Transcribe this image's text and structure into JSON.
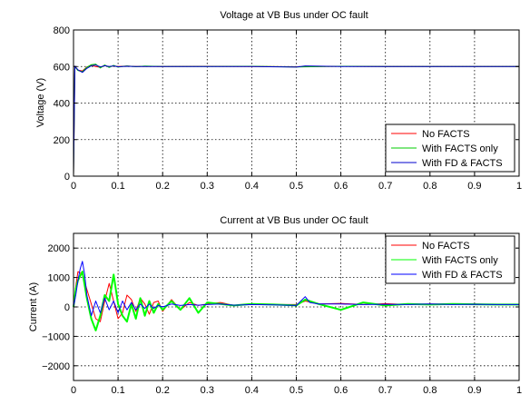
{
  "chart_data": [
    {
      "type": "line",
      "title": "Voltage at VB Bus under OC fault",
      "xlabel": "",
      "ylabel": "Voltage (V)",
      "xlim": [
        0,
        1
      ],
      "ylim": [
        0,
        800
      ],
      "xticks": [
        0,
        0.1,
        0.2,
        0.3,
        0.4,
        0.5,
        0.6,
        0.7,
        0.8,
        0.9,
        1
      ],
      "xtick_labels": [
        "0",
        "0.1",
        "0.2",
        "0.3",
        "0.4",
        "0.5",
        "0.6",
        "0.7",
        "0.8",
        "0.9",
        "1"
      ],
      "yticks": [
        0,
        200,
        400,
        600,
        800
      ],
      "ytick_labels": [
        "0",
        "200",
        "400",
        "600",
        "800"
      ],
      "grid": true,
      "legend_position": "bottom-right",
      "series": [
        {
          "name": "No FACTS",
          "color": "#ff0000",
          "x": [
            0,
            0.003,
            0.01,
            0.02,
            0.03,
            0.04,
            0.05,
            0.06,
            0.07,
            0.08,
            0.09,
            0.1,
            0.12,
            0.14,
            0.16,
            0.2,
            0.3,
            0.4,
            0.5,
            0.6,
            0.7,
            0.8,
            0.9,
            1
          ],
          "y": [
            0,
            598,
            580,
            576,
            598,
            606,
            600,
            596,
            605,
            599,
            603,
            600,
            602,
            600,
            601,
            600,
            601,
            600,
            599,
            601,
            600,
            600,
            600,
            600
          ]
        },
        {
          "name": "With FACTS only",
          "color": "#00cc00",
          "x": [
            0,
            0.003,
            0.01,
            0.02,
            0.03,
            0.04,
            0.05,
            0.06,
            0.07,
            0.08,
            0.09,
            0.1,
            0.12,
            0.14,
            0.16,
            0.2,
            0.3,
            0.4,
            0.5,
            0.6,
            0.7,
            0.8,
            0.9,
            1
          ],
          "y": [
            0,
            600,
            578,
            572,
            596,
            610,
            613,
            592,
            608,
            595,
            606,
            597,
            603,
            599,
            602,
            600,
            600,
            601,
            598,
            601,
            600,
            600,
            600,
            600
          ]
        },
        {
          "name": "With FD & FACTS",
          "color": "#0000cc",
          "x": [
            0,
            0.003,
            0.01,
            0.02,
            0.03,
            0.04,
            0.05,
            0.06,
            0.07,
            0.08,
            0.09,
            0.1,
            0.12,
            0.14,
            0.16,
            0.2,
            0.3,
            0.4,
            0.5,
            0.52,
            0.6,
            0.7,
            0.8,
            0.9,
            1
          ],
          "y": [
            0,
            602,
            582,
            568,
            590,
            604,
            608,
            598,
            604,
            600,
            603,
            599,
            601,
            600,
            600,
            600,
            600,
            600,
            597,
            603,
            600,
            600,
            600,
            600,
            600
          ]
        }
      ]
    },
    {
      "type": "line",
      "title": "Current at VB Bus under OC fault",
      "xlabel": "",
      "ylabel": "Current (A)",
      "xlim": [
        0,
        1
      ],
      "ylim": [
        -2500,
        2500
      ],
      "xticks": [
        0,
        0.1,
        0.2,
        0.3,
        0.4,
        0.5,
        0.6,
        0.7,
        0.8,
        0.9,
        1
      ],
      "xtick_labels": [
        "0",
        "0.1",
        "0.2",
        "0.3",
        "0.4",
        "0.5",
        "0.6",
        "0.7",
        "0.8",
        "0.9",
        "1"
      ],
      "yticks": [
        -2000,
        -1000,
        0,
        1000,
        2000
      ],
      "ytick_labels": [
        "−2000",
        "−1000",
        "0",
        "1000",
        "2000"
      ],
      "grid": true,
      "legend_position": "top-right",
      "series": [
        {
          "name": "No FACTS",
          "color": "#ff0000",
          "x": [
            0,
            0.005,
            0.01,
            0.02,
            0.03,
            0.04,
            0.05,
            0.06,
            0.07,
            0.08,
            0.09,
            0.1,
            0.11,
            0.12,
            0.13,
            0.14,
            0.15,
            0.16,
            0.17,
            0.18,
            0.19,
            0.2,
            0.22,
            0.24,
            0.26,
            0.28,
            0.3,
            0.33,
            0.36,
            0.4,
            0.45,
            0.5,
            0.52,
            0.55,
            0.6,
            0.65,
            0.7,
            0.75,
            0.8,
            0.85,
            0.9,
            0.95,
            1
          ],
          "y": [
            0,
            700,
            1200,
            1100,
            600,
            100,
            -400,
            -500,
            200,
            800,
            200,
            -400,
            -200,
            400,
            250,
            -150,
            300,
            100,
            -250,
            150,
            200,
            -150,
            250,
            -100,
            150,
            50,
            100,
            150,
            50,
            100,
            80,
            80,
            200,
            100,
            120,
            80,
            110,
            80,
            100,
            90,
            100,
            80,
            80
          ]
        },
        {
          "name": "With FACTS only",
          "color": "#00ff00",
          "x": [
            0,
            0.005,
            0.01,
            0.02,
            0.03,
            0.04,
            0.05,
            0.06,
            0.07,
            0.08,
            0.09,
            0.1,
            0.11,
            0.12,
            0.13,
            0.14,
            0.15,
            0.16,
            0.17,
            0.18,
            0.19,
            0.2,
            0.22,
            0.24,
            0.26,
            0.28,
            0.3,
            0.33,
            0.36,
            0.4,
            0.45,
            0.5,
            0.52,
            0.55,
            0.6,
            0.65,
            0.7,
            0.75,
            0.8,
            0.85,
            0.9,
            0.95,
            1
          ],
          "y": [
            0,
            600,
            900,
            1200,
            300,
            -400,
            -800,
            -300,
            400,
            200,
            1100,
            100,
            -300,
            -500,
            100,
            -400,
            300,
            -300,
            200,
            -200,
            100,
            -100,
            200,
            -100,
            300,
            -200,
            150,
            100,
            50,
            100,
            80,
            50,
            250,
            100,
            -100,
            150,
            50,
            100,
            80,
            100,
            90,
            80,
            80
          ]
        },
        {
          "name": "With FD & FACTS",
          "color": "#0000ff",
          "x": [
            0,
            0.005,
            0.01,
            0.015,
            0.02,
            0.025,
            0.03,
            0.04,
            0.05,
            0.06,
            0.07,
            0.08,
            0.09,
            0.1,
            0.11,
            0.12,
            0.13,
            0.14,
            0.15,
            0.16,
            0.17,
            0.18,
            0.19,
            0.2,
            0.22,
            0.24,
            0.26,
            0.28,
            0.3,
            0.33,
            0.36,
            0.4,
            0.45,
            0.5,
            0.52,
            0.53,
            0.55,
            0.6,
            0.65,
            0.7,
            0.75,
            0.8,
            0.85,
            0.9,
            0.95,
            1
          ],
          "y": [
            0,
            400,
            900,
            1300,
            1550,
            1100,
            400,
            -300,
            200,
            -200,
            300,
            -100,
            200,
            -200,
            200,
            -100,
            150,
            -100,
            100,
            -50,
            100,
            -50,
            50,
            0,
            100,
            50,
            80,
            60,
            80,
            100,
            60,
            80,
            70,
            50,
            350,
            150,
            100,
            100,
            80,
            90,
            80,
            100,
            80,
            90,
            80,
            80
          ]
        }
      ]
    }
  ]
}
